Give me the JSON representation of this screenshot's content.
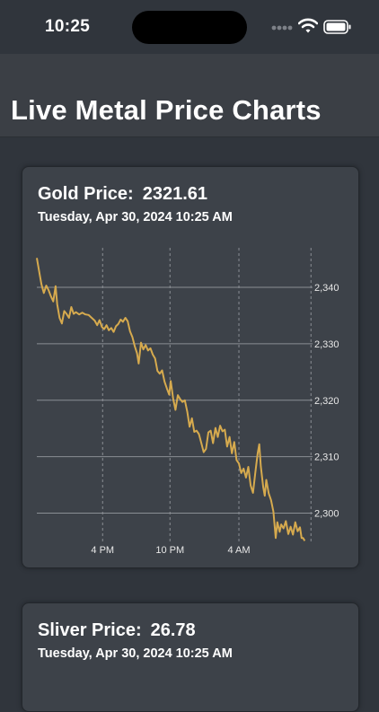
{
  "status": {
    "time": "10:25"
  },
  "header": {
    "title": "Live Metal Price Charts"
  },
  "cards": [
    {
      "metal_label": "Gold Price:",
      "price": "2321.61",
      "date": "Tuesday, Apr 30, 2024 10:25 AM"
    },
    {
      "metal_label": "Sliver Price:",
      "price": "26.78",
      "date": "Tuesday, Apr 30, 2024 10:25 AM"
    }
  ],
  "colors": {
    "line": "#d6aa4e",
    "grid": "#8a8e94",
    "card": "#3d4249",
    "background": "#30353c"
  },
  "chart_data": {
    "type": "line",
    "title": "",
    "xlabel": "",
    "ylabel": "",
    "ylim": [
      2295,
      2347
    ],
    "yticks": [
      2300,
      2310,
      2320,
      2330,
      2340
    ],
    "ytick_labels": [
      "2,300",
      "2,310",
      "2,320",
      "2,330",
      "2,340"
    ],
    "x_range": [
      0,
      17.6
    ],
    "xticks": [
      {
        "x": 4.2,
        "label": "4 PM"
      },
      {
        "x": 8.5,
        "label": "10 PM"
      },
      {
        "x": 12.9,
        "label": "4 AM"
      }
    ],
    "x_extra_gridlines": [
      17.5
    ],
    "grid": "on",
    "legend": "none",
    "series": [
      {
        "points": [
          [
            0.0,
            2345.2
          ],
          [
            0.2,
            2342.0
          ],
          [
            0.3,
            2340.5
          ],
          [
            0.45,
            2339.0
          ],
          [
            0.6,
            2340.3
          ],
          [
            0.75,
            2339.5
          ],
          [
            0.9,
            2338.4
          ],
          [
            1.05,
            2337.5
          ],
          [
            1.2,
            2340.2
          ],
          [
            1.3,
            2337.0
          ],
          [
            1.45,
            2334.6
          ],
          [
            1.6,
            2333.6
          ],
          [
            1.75,
            2335.8
          ],
          [
            1.9,
            2335.3
          ],
          [
            2.05,
            2334.6
          ],
          [
            2.2,
            2336.5
          ],
          [
            2.35,
            2335.3
          ],
          [
            2.5,
            2335.6
          ],
          [
            2.7,
            2335.2
          ],
          [
            2.9,
            2335.5
          ],
          [
            3.1,
            2335.2
          ],
          [
            3.3,
            2335.1
          ],
          [
            3.5,
            2334.6
          ],
          [
            3.7,
            2334.1
          ],
          [
            3.85,
            2333.3
          ],
          [
            4.0,
            2334.2
          ],
          [
            4.15,
            2333.0
          ],
          [
            4.3,
            2332.6
          ],
          [
            4.45,
            2333.3
          ],
          [
            4.6,
            2332.4
          ],
          [
            4.75,
            2332.8
          ],
          [
            4.9,
            2332.1
          ],
          [
            5.05,
            2333.1
          ],
          [
            5.2,
            2333.5
          ],
          [
            5.35,
            2334.3
          ],
          [
            5.5,
            2333.9
          ],
          [
            5.65,
            2334.6
          ],
          [
            5.8,
            2334.0
          ],
          [
            5.95,
            2332.2
          ],
          [
            6.1,
            2331.2
          ],
          [
            6.25,
            2329.6
          ],
          [
            6.4,
            2328.3
          ],
          [
            6.5,
            2326.5
          ],
          [
            6.65,
            2330.2
          ],
          [
            6.8,
            2329.0
          ],
          [
            6.95,
            2329.8
          ],
          [
            7.1,
            2328.8
          ],
          [
            7.25,
            2329.2
          ],
          [
            7.4,
            2328.1
          ],
          [
            7.55,
            2327.4
          ],
          [
            7.7,
            2325.2
          ],
          [
            7.85,
            2324.7
          ],
          [
            8.0,
            2325.3
          ],
          [
            8.15,
            2323.3
          ],
          [
            8.3,
            2322.1
          ],
          [
            8.45,
            2321.0
          ],
          [
            8.55,
            2323.4
          ],
          [
            8.7,
            2320.3
          ],
          [
            8.85,
            2318.3
          ],
          [
            9.0,
            2320.9
          ],
          [
            9.15,
            2320.2
          ],
          [
            9.3,
            2319.7
          ],
          [
            9.45,
            2320.0
          ],
          [
            9.6,
            2318.0
          ],
          [
            9.75,
            2315.3
          ],
          [
            9.9,
            2316.8
          ],
          [
            10.05,
            2314.4
          ],
          [
            10.2,
            2314.6
          ],
          [
            10.35,
            2314.0
          ],
          [
            10.5,
            2312.4
          ],
          [
            10.65,
            2310.8
          ],
          [
            10.8,
            2311.4
          ],
          [
            10.95,
            2314.3
          ],
          [
            11.1,
            2314.6
          ],
          [
            11.25,
            2312.4
          ],
          [
            11.4,
            2315.1
          ],
          [
            11.55,
            2313.5
          ],
          [
            11.7,
            2315.5
          ],
          [
            11.85,
            2314.5
          ],
          [
            12.0,
            2314.8
          ],
          [
            12.15,
            2311.8
          ],
          [
            12.3,
            2313.5
          ],
          [
            12.45,
            2310.6
          ],
          [
            12.6,
            2312.6
          ],
          [
            12.75,
            2309.4
          ],
          [
            12.9,
            2308.8
          ],
          [
            13.05,
            2307.1
          ],
          [
            13.2,
            2307.9
          ],
          [
            13.35,
            2306.3
          ],
          [
            13.5,
            2308.2
          ],
          [
            13.65,
            2304.9
          ],
          [
            13.8,
            2303.6
          ],
          [
            13.95,
            2307.2
          ],
          [
            14.1,
            2310.6
          ],
          [
            14.2,
            2312.2
          ],
          [
            14.3,
            2308.3
          ],
          [
            14.45,
            2304.6
          ],
          [
            14.55,
            2303.1
          ],
          [
            14.65,
            2305.9
          ],
          [
            14.8,
            2303.5
          ],
          [
            14.95,
            2302.3
          ],
          [
            15.1,
            2300.3
          ],
          [
            15.25,
            2295.6
          ],
          [
            15.35,
            2298.4
          ],
          [
            15.5,
            2296.7
          ],
          [
            15.6,
            2298.0
          ],
          [
            15.75,
            2297.3
          ],
          [
            15.9,
            2298.6
          ],
          [
            16.05,
            2296.3
          ],
          [
            16.2,
            2297.6
          ],
          [
            16.35,
            2296.2
          ],
          [
            16.5,
            2298.4
          ],
          [
            16.65,
            2296.8
          ],
          [
            16.8,
            2297.5
          ],
          [
            16.9,
            2295.6
          ],
          [
            17.0,
            2295.6
          ],
          [
            17.1,
            2295.1
          ]
        ]
      }
    ]
  }
}
